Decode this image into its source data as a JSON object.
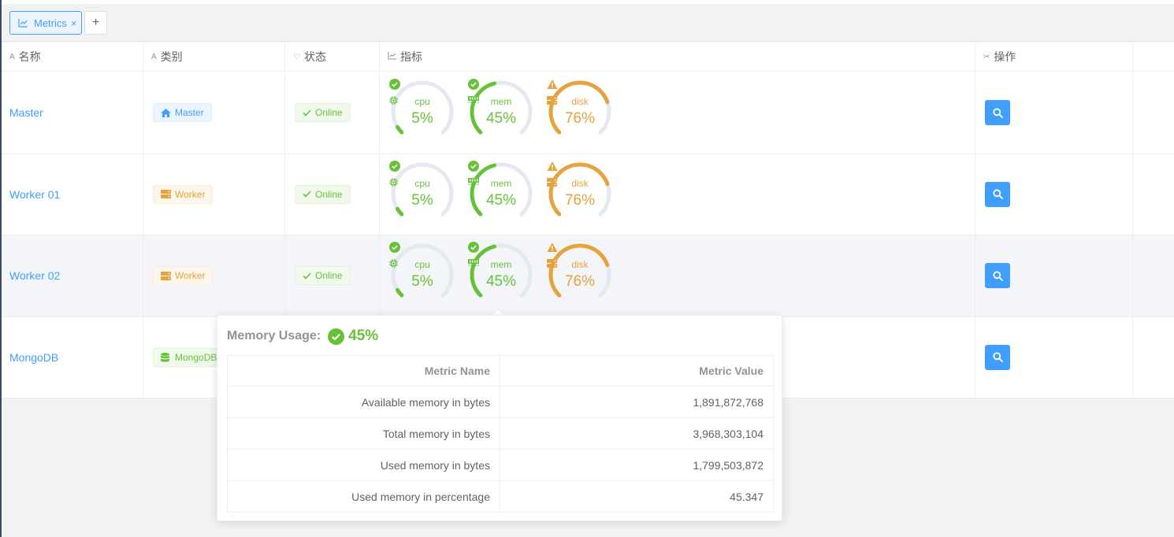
{
  "tabs": [
    {
      "label": "Metrics",
      "icon": "line-chart-icon",
      "close": "×"
    }
  ],
  "add_tab_label": "+",
  "columns": [
    {
      "label": "名称",
      "icon": "text-icon"
    },
    {
      "label": "类别",
      "icon": "text-icon"
    },
    {
      "label": "状态",
      "icon": "heart-icon"
    },
    {
      "label": "指标",
      "icon": "line-chart-icon"
    },
    {
      "label": "操作",
      "icon": "tools-icon"
    }
  ],
  "rows": [
    {
      "name": "Master",
      "type": "Master",
      "type_icon": "home-icon",
      "status": "Online",
      "metrics": [
        {
          "label": "cpu",
          "value": "5%",
          "percent": 5,
          "state": "ok"
        },
        {
          "label": "mem",
          "value": "45%",
          "percent": 45,
          "state": "ok"
        },
        {
          "label": "disk",
          "value": "76%",
          "percent": 76,
          "state": "warning"
        }
      ]
    },
    {
      "name": "Worker 01",
      "type": "Worker",
      "type_icon": "server-icon",
      "status": "Online",
      "metrics": [
        {
          "label": "cpu",
          "value": "5%",
          "percent": 5,
          "state": "ok"
        },
        {
          "label": "mem",
          "value": "45%",
          "percent": 45,
          "state": "ok"
        },
        {
          "label": "disk",
          "value": "76%",
          "percent": 76,
          "state": "warning"
        }
      ]
    },
    {
      "name": "Worker 02",
      "type": "Worker",
      "type_icon": "server-icon",
      "status": "Online",
      "metrics": [
        {
          "label": "cpu",
          "value": "5%",
          "percent": 5,
          "state": "ok"
        },
        {
          "label": "mem",
          "value": "45%",
          "percent": 45,
          "state": "ok"
        },
        {
          "label": "disk",
          "value": "76%",
          "percent": 76,
          "state": "warning"
        }
      ]
    },
    {
      "name": "MongoDB",
      "type": "MongoDB",
      "type_icon": "database-icon"
    }
  ],
  "popover": {
    "title": "Memory Usage:",
    "value": "45%",
    "headers": [
      "Metric Name",
      "Metric Value"
    ],
    "items": [
      {
        "name": "Available memory in bytes",
        "value": "1,891,872,768"
      },
      {
        "name": "Total memory in bytes",
        "value": "3,968,303,104"
      },
      {
        "name": "Used memory in bytes",
        "value": "1,799,503,872"
      },
      {
        "name": "Used memory in percentage",
        "value": "45.347"
      }
    ]
  },
  "colors": {
    "primary": "#409eff",
    "success": "#67c23a",
    "warning": "#e6a23c",
    "track": "#e4e8f1"
  }
}
